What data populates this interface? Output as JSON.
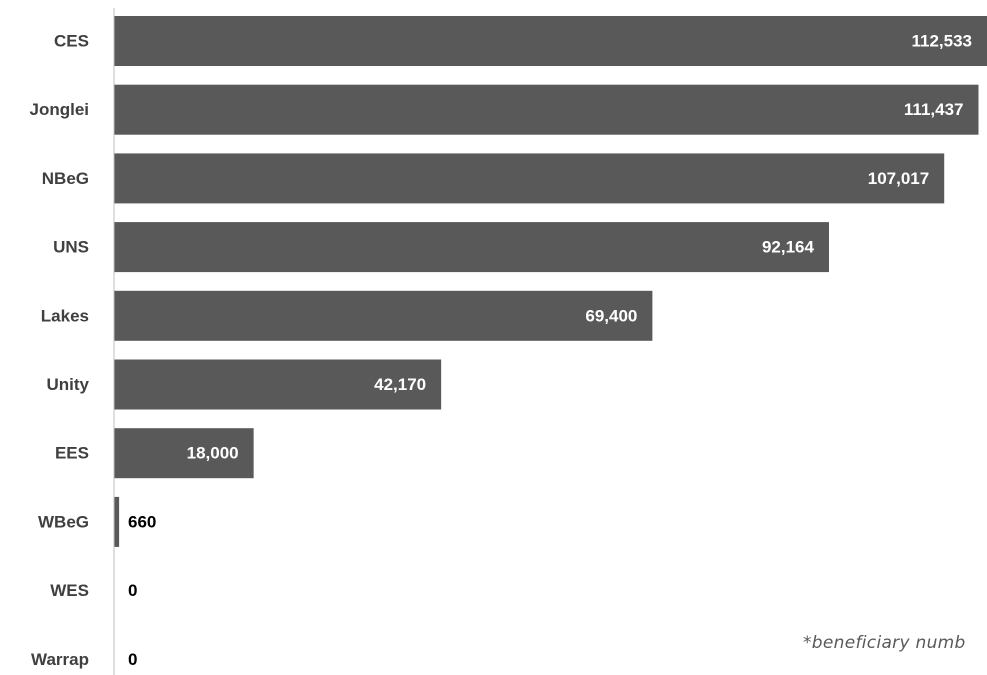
{
  "chart_data": {
    "type": "bar",
    "orientation": "horizontal",
    "categories": [
      "CES",
      "Jonglei",
      "NBeG",
      "UNS",
      "Lakes",
      "Unity",
      "EES",
      "WBeG",
      "WES",
      "Warrap"
    ],
    "values": [
      112533,
      111437,
      107017,
      92164,
      69400,
      42170,
      18000,
      660,
      0,
      0
    ],
    "value_labels": [
      "112,533",
      "111,437",
      "107,017",
      "92,164",
      "69,400",
      "42,170",
      "18,000",
      "660",
      "0",
      "0"
    ],
    "bar_color": "#595959",
    "axis_color": "#bfbfbf",
    "xlim": [
      0,
      112533
    ],
    "grid": false,
    "legend": "none",
    "footnote": "*beneficiary numb"
  }
}
